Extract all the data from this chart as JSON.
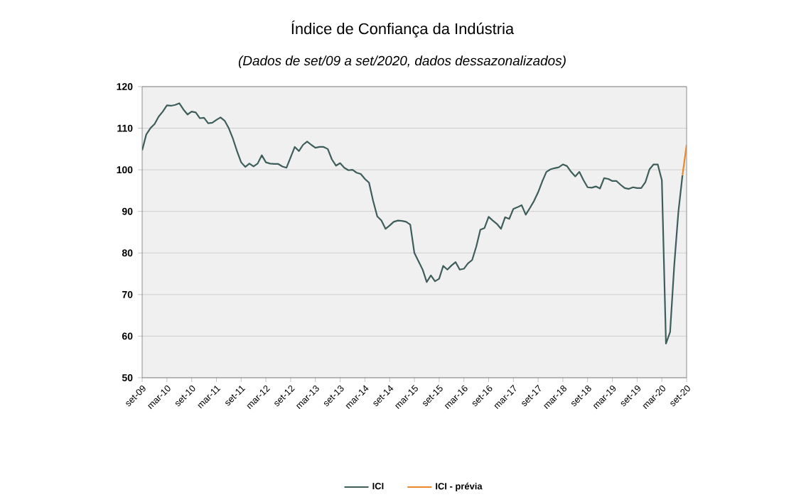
{
  "chart_data": {
    "type": "line",
    "title": "Índice de Confiança da Indústria",
    "subtitle": "(Dados de set/09 a set/2020, dados dessazonalizados)",
    "x": [
      "2009-09",
      "2009-10",
      "2009-11",
      "2009-12",
      "2010-01",
      "2010-02",
      "2010-03",
      "2010-04",
      "2010-05",
      "2010-06",
      "2010-07",
      "2010-08",
      "2010-09",
      "2010-10",
      "2010-11",
      "2010-12",
      "2011-01",
      "2011-02",
      "2011-03",
      "2011-04",
      "2011-05",
      "2011-06",
      "2011-07",
      "2011-08",
      "2011-09",
      "2011-10",
      "2011-11",
      "2011-12",
      "2012-01",
      "2012-02",
      "2012-03",
      "2012-04",
      "2012-05",
      "2012-06",
      "2012-07",
      "2012-08",
      "2012-09",
      "2012-10",
      "2012-11",
      "2012-12",
      "2013-01",
      "2013-02",
      "2013-03",
      "2013-04",
      "2013-05",
      "2013-06",
      "2013-07",
      "2013-08",
      "2013-09",
      "2013-10",
      "2013-11",
      "2013-12",
      "2014-01",
      "2014-02",
      "2014-03",
      "2014-04",
      "2014-05",
      "2014-06",
      "2014-07",
      "2014-08",
      "2014-09",
      "2014-10",
      "2014-11",
      "2014-12",
      "2015-01",
      "2015-02",
      "2015-03",
      "2015-04",
      "2015-05",
      "2015-06",
      "2015-07",
      "2015-08",
      "2015-09",
      "2015-10",
      "2015-11",
      "2015-12",
      "2016-01",
      "2016-02",
      "2016-03",
      "2016-04",
      "2016-05",
      "2016-06",
      "2016-07",
      "2016-08",
      "2016-09",
      "2016-10",
      "2016-11",
      "2016-12",
      "2017-01",
      "2017-02",
      "2017-03",
      "2017-04",
      "2017-05",
      "2017-06",
      "2017-07",
      "2017-08",
      "2017-09",
      "2017-10",
      "2017-11",
      "2017-12",
      "2018-01",
      "2018-02",
      "2018-03",
      "2018-04",
      "2018-05",
      "2018-06",
      "2018-07",
      "2018-08",
      "2018-09",
      "2018-10",
      "2018-11",
      "2018-12",
      "2019-01",
      "2019-02",
      "2019-03",
      "2019-04",
      "2019-05",
      "2019-06",
      "2019-07",
      "2019-08",
      "2019-09",
      "2019-10",
      "2019-11",
      "2019-12",
      "2020-01",
      "2020-02",
      "2020-03",
      "2020-04",
      "2020-05",
      "2020-06",
      "2020-07",
      "2020-08"
    ],
    "series": [
      {
        "name": "ICI",
        "color": "#3d5e5a",
        "values": [
          104.7,
          108.5,
          110.0,
          111.0,
          112.8,
          114.0,
          115.5,
          115.4,
          115.6,
          116.0,
          114.5,
          113.3,
          114.0,
          113.8,
          112.4,
          112.5,
          111.2,
          111.3,
          112.0,
          112.6,
          111.8,
          110.0,
          107.5,
          104.5,
          101.8,
          100.7,
          101.5,
          100.8,
          101.5,
          103.5,
          101.8,
          101.5,
          101.4,
          101.4,
          100.8,
          100.5,
          103.0,
          105.5,
          104.5,
          106.0,
          106.8,
          106.0,
          105.3,
          105.5,
          105.5,
          105.0,
          102.5,
          101.0,
          101.6,
          100.5,
          99.9,
          100.0,
          99.3,
          99.0,
          97.8,
          96.9,
          92.5,
          88.8,
          87.8,
          85.8,
          86.6,
          87.5,
          87.8,
          87.7,
          87.5,
          86.8,
          80.0,
          78.0,
          76.0,
          73.0,
          74.6,
          73.2,
          73.8,
          76.9,
          76.0,
          77.0,
          77.8,
          76.0,
          76.2,
          77.5,
          78.3,
          81.5,
          85.6,
          86.0,
          88.7,
          87.8,
          87.0,
          85.8,
          88.6,
          88.2,
          90.6,
          91.0,
          91.5,
          89.2,
          90.8,
          92.5,
          94.6,
          97.2,
          99.5,
          100.1,
          100.4,
          100.6,
          101.3,
          100.9,
          99.5,
          98.4,
          99.5,
          97.5,
          95.8,
          95.7,
          96.0,
          95.5,
          98.0,
          97.8,
          97.3,
          97.3,
          96.4,
          95.6,
          95.4,
          95.8,
          95.6,
          95.6,
          97.0,
          100.1,
          101.3,
          101.3,
          97.5,
          58.2,
          61.0,
          77.0,
          89.8,
          98.7
        ]
      },
      {
        "name": "ICI - prévia",
        "color": "#e88a2c",
        "x": [
          "2020-08",
          "2020-09"
        ],
        "values": [
          98.7,
          106.0
        ]
      }
    ],
    "xlim": [
      "2009-09",
      "2020-09"
    ],
    "xticks": [
      {
        "value": "2009-09",
        "label": "set-09"
      },
      {
        "value": "2010-03",
        "label": "mar-10"
      },
      {
        "value": "2010-09",
        "label": "set-10"
      },
      {
        "value": "2011-03",
        "label": "mar-11"
      },
      {
        "value": "2011-09",
        "label": "set-11"
      },
      {
        "value": "2012-03",
        "label": "mar-12"
      },
      {
        "value": "2012-09",
        "label": "set-12"
      },
      {
        "value": "2013-03",
        "label": "mar-13"
      },
      {
        "value": "2013-09",
        "label": "set-13"
      },
      {
        "value": "2014-03",
        "label": "mar-14"
      },
      {
        "value": "2014-09",
        "label": "set-14"
      },
      {
        "value": "2015-03",
        "label": "mar-15"
      },
      {
        "value": "2015-09",
        "label": "set-15"
      },
      {
        "value": "2016-03",
        "label": "mar-16"
      },
      {
        "value": "2016-09",
        "label": "set-16"
      },
      {
        "value": "2017-03",
        "label": "mar-17"
      },
      {
        "value": "2017-09",
        "label": "set-17"
      },
      {
        "value": "2018-03",
        "label": "mar-18"
      },
      {
        "value": "2018-09",
        "label": "set-18"
      },
      {
        "value": "2019-03",
        "label": "mar-19"
      },
      {
        "value": "2019-09",
        "label": "set-19"
      },
      {
        "value": "2020-03",
        "label": "mar-20"
      },
      {
        "value": "2020-09",
        "label": "set-20"
      }
    ],
    "ylim": [
      50,
      120
    ],
    "yticks": [
      50,
      60,
      70,
      80,
      90,
      100,
      110,
      120
    ],
    "grid": "y",
    "legend": "bottom",
    "marker": "none",
    "line_style": "solid"
  }
}
